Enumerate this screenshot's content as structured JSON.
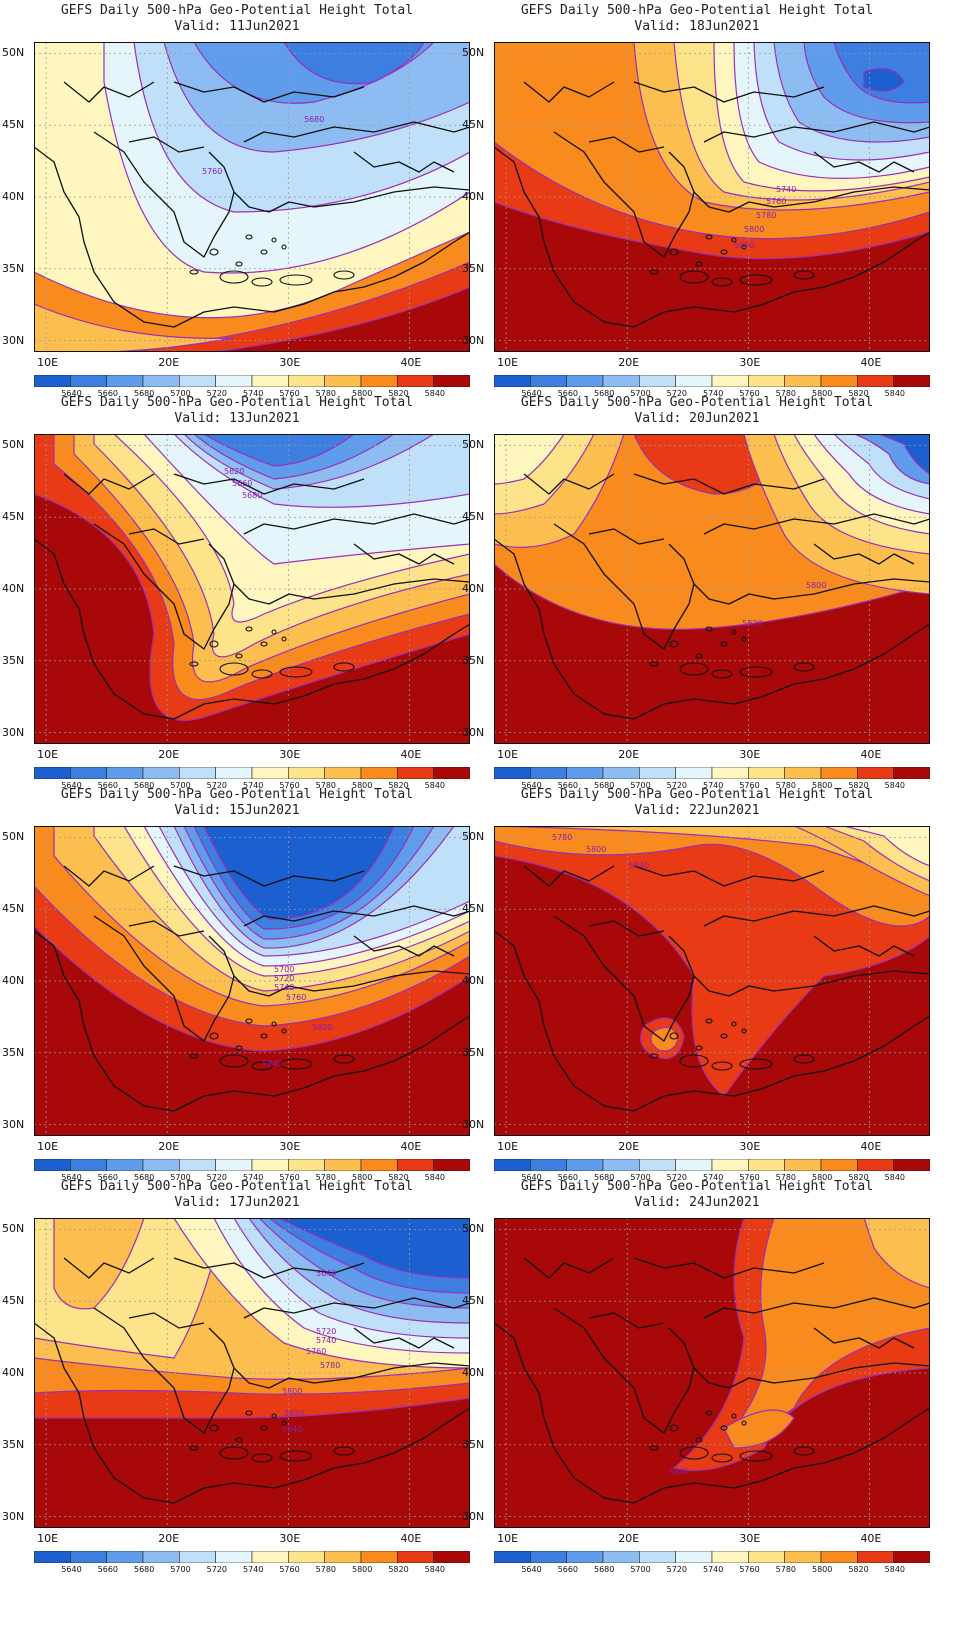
{
  "map_title": "GEFS Daily 500-hPa Geo-Potential Height Total",
  "panels": [
    {
      "valid": "Valid: 11Jun2021",
      "scene": "trough_north"
    },
    {
      "valid": "Valid: 18Jun2021",
      "scene": "trough_ne"
    },
    {
      "valid": "Valid: 13Jun2021",
      "scene": "trough_north_strong"
    },
    {
      "valid": "Valid: 20Jun2021",
      "scene": "ridge_central"
    },
    {
      "valid": "Valid: 15Jun2021",
      "scene": "cutoff_low"
    },
    {
      "valid": "Valid: 22Jun2021",
      "scene": "ridge_hot"
    },
    {
      "valid": "Valid: 17Jun2021",
      "scene": "trough_east"
    },
    {
      "valid": "Valid: 24Jun2021",
      "scene": "ridge_very_hot"
    }
  ],
  "lat_labels": [
    "50N",
    "45N",
    "40N",
    "35N",
    "30N"
  ],
  "lon_labels": [
    "10E",
    "20E",
    "30E",
    "40E"
  ],
  "colorbar": {
    "labels": [
      "5640",
      "5660",
      "5680",
      "5700",
      "5720",
      "5740",
      "5760",
      "5780",
      "5800",
      "5820",
      "5840"
    ],
    "colors": [
      "#1b5fd1",
      "#3d7fe0",
      "#5f9cec",
      "#8dbcf2",
      "#bfe0f8",
      "#e4f6fb",
      "#fff6c0",
      "#fde38a",
      "#fcbe4e",
      "#f88a1e",
      "#e83a14",
      "#a80808"
    ]
  },
  "contour_labels": {
    "p0": [
      "5680",
      "5760"
    ],
    "p1": [
      "5740",
      "5760",
      "5780",
      "5800",
      "5820"
    ],
    "p2": [
      "5620",
      "5660",
      "5680"
    ],
    "p3": [
      "5800",
      "5820"
    ],
    "p4": [
      "5700",
      "5720",
      "5740",
      "5760",
      "5800",
      "5840"
    ],
    "p5": [
      "5780",
      "5800",
      "5840"
    ],
    "p6": [
      "5640",
      "5720",
      "5740",
      "5760",
      "5780",
      "5800",
      "5820",
      "5840"
    ],
    "p7": [
      "5840"
    ]
  }
}
